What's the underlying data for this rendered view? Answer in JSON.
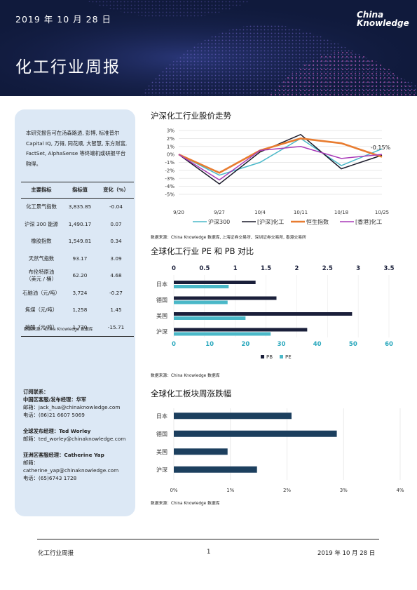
{
  "header": {
    "date": "2019 年 10 月 28 日",
    "title": "化工行业周报",
    "logo_line1": "China",
    "logo_line2": "Knowledge"
  },
  "sidebar": {
    "intro": "本研究报告可在汤森路透, 彭博, 标准普尔Capital IQ, 万得, 同花顺, 大智慧, 东方财富, FactSet, AlphaSense 等终端机或研报平台购得。",
    "table": {
      "headers": [
        "主要指标",
        "指标值",
        "变化（%）"
      ],
      "rows": [
        {
          "name": "化工景气指数",
          "value": "3,835.85",
          "change": "-0.04"
        },
        {
          "name": "沪深 300 能源",
          "value": "1,490.17",
          "change": "0.07"
        },
        {
          "name": "橡胶指数",
          "value": "1,549.81",
          "change": "0.34"
        },
        {
          "name": "天然气指数",
          "value": "93.17",
          "change": "3.09"
        },
        {
          "name": "布伦特原油（美元 / 桶）",
          "value": "62.20",
          "change": "4.68"
        },
        {
          "name": "石脑油（元/吨）",
          "value": "3,724",
          "change": "-0.27"
        },
        {
          "name": "焦煤（元/吨）",
          "value": "1,258",
          "change": "1.45"
        },
        {
          "name": "硝酸（元/吨）",
          "value": "1,770",
          "change": "-15.71"
        }
      ],
      "source": "数据来源：China Knowledge 数据库"
    },
    "contacts": {
      "title": "订阅联系：",
      "china_role": "中国区客服/发布经理：华军",
      "china_email": "邮箱：jack_hua@chinaknowledge.com",
      "china_phone": "电话：(86)21 6607 5069",
      "global_role": "全球发布经理：Ted Worley",
      "global_email": "邮箱：ted_worley@chinaknowledge.com",
      "asia_role": "亚洲区客服经理：Catherine Yap",
      "asia_email": "邮箱：catherine_yap@chinaknowledge.com",
      "asia_phone": "电话：(65)6743 1728"
    }
  },
  "footer": {
    "left": "化工行业周报",
    "page": "1",
    "right": "2019 年 10 月 28 日"
  },
  "chart_data": [
    {
      "type": "line",
      "title": "沪深化工行业股价走势",
      "x": [
        "9/20",
        "9/27",
        "10/4",
        "10/11",
        "10/18",
        "10/25"
      ],
      "series_points": [
        [
          0,
          1,
          2,
          3,
          4,
          5
        ]
      ],
      "series": [
        {
          "name": "沪深300",
          "color": "#4ab8c8",
          "values": [
            0,
            -2.6,
            -1.0,
            2.0,
            -1.4,
            0.7
          ]
        },
        {
          "name": "[沪深]化工",
          "color": "#1a1a2a",
          "values": [
            0,
            -3.7,
            0.3,
            2.5,
            -1.8,
            -0.1
          ]
        },
        {
          "name": "恒生指数",
          "color": "#e87c30",
          "values": [
            0,
            -2.3,
            0.5,
            2.0,
            1.4,
            -0.3
          ]
        },
        {
          "name": "[香港]化工",
          "color": "#a83ab8",
          "values": [
            0,
            -3.2,
            0.5,
            1.0,
            -0.5,
            0.0
          ]
        }
      ],
      "annotation": "-0.15%",
      "y_ticks": [
        "3%",
        "2%",
        "1%",
        "0%",
        "-1%",
        "-2%",
        "-3%",
        "-4%",
        "-5%"
      ],
      "ylim": [
        -5,
        3
      ],
      "source": "数据来源：China Knowledge 数据库, 上海证券交易所、深圳证券交易所, 香港交易所"
    },
    {
      "type": "bar",
      "title": "全球化工行业 PE 和 PB 对比",
      "categories": [
        "日本",
        "德国",
        "美国",
        "沪深"
      ],
      "series": [
        {
          "name": "PB",
          "color": "#1a1f3a",
          "axis": "top",
          "values": [
            1.33,
            1.67,
            2.9,
            2.17
          ]
        },
        {
          "name": "PE",
          "color": "#4ab8c8",
          "axis": "bottom",
          "values": [
            15.3,
            15.0,
            20.0,
            27.0
          ]
        }
      ],
      "top_ticks": [
        "0",
        "0.5",
        "1",
        "1.5",
        "2",
        "2.5",
        "3",
        "3.5"
      ],
      "top_lim": [
        0,
        3.5
      ],
      "bottom_ticks": [
        "0",
        "10",
        "20",
        "30",
        "40",
        "50",
        "60"
      ],
      "bottom_lim": [
        0,
        60
      ],
      "legend": [
        "PB",
        "PE"
      ],
      "source": "数据来源：China Knowledge 数据库"
    },
    {
      "type": "bar",
      "title": "全球化工板块周涨跌幅",
      "categories": [
        "日本",
        "德国",
        "美国",
        "沪深"
      ],
      "values": [
        2.08,
        2.88,
        0.95,
        1.47
      ],
      "color": "#1c3f5e",
      "x_ticks": [
        "0%",
        "1%",
        "2%",
        "3%",
        "4%"
      ],
      "xlim": [
        0,
        4
      ],
      "source": "数据来源：China Knowledge 数据库"
    }
  ]
}
